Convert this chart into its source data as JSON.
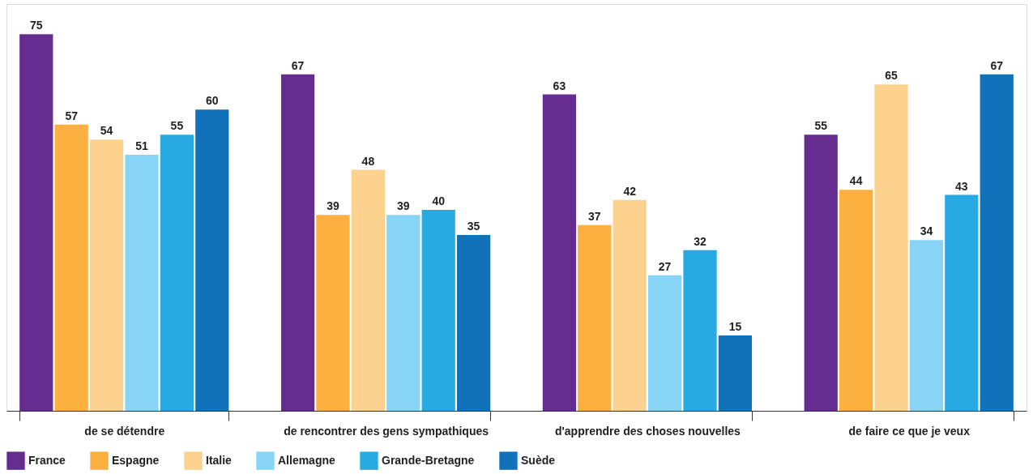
{
  "chart_data": {
    "type": "bar",
    "categories": [
      "de se détendre",
      "de rencontrer des gens sympathiques",
      "d'apprendre des choses nouvelles",
      "de faire ce que je veux"
    ],
    "series": [
      {
        "name": "France",
        "color": "#662d91",
        "values": [
          75,
          67,
          63,
          55
        ]
      },
      {
        "name": "Espagne",
        "color": "#fbb040",
        "values": [
          57,
          39,
          37,
          44
        ]
      },
      {
        "name": "Italie",
        "color": "#fdd18e",
        "values": [
          54,
          48,
          42,
          65
        ]
      },
      {
        "name": "Allemagne",
        "color": "#87d4f6",
        "values": [
          51,
          39,
          27,
          34
        ]
      },
      {
        "name": "Grande-Bretagne",
        "color": "#27aae1",
        "values": [
          55,
          40,
          32,
          43
        ]
      },
      {
        "name": "Suède",
        "color": "#1172ba",
        "values": [
          60,
          35,
          15,
          67
        ]
      }
    ],
    "data_labels": true,
    "legend": "bottom",
    "grid": false
  }
}
